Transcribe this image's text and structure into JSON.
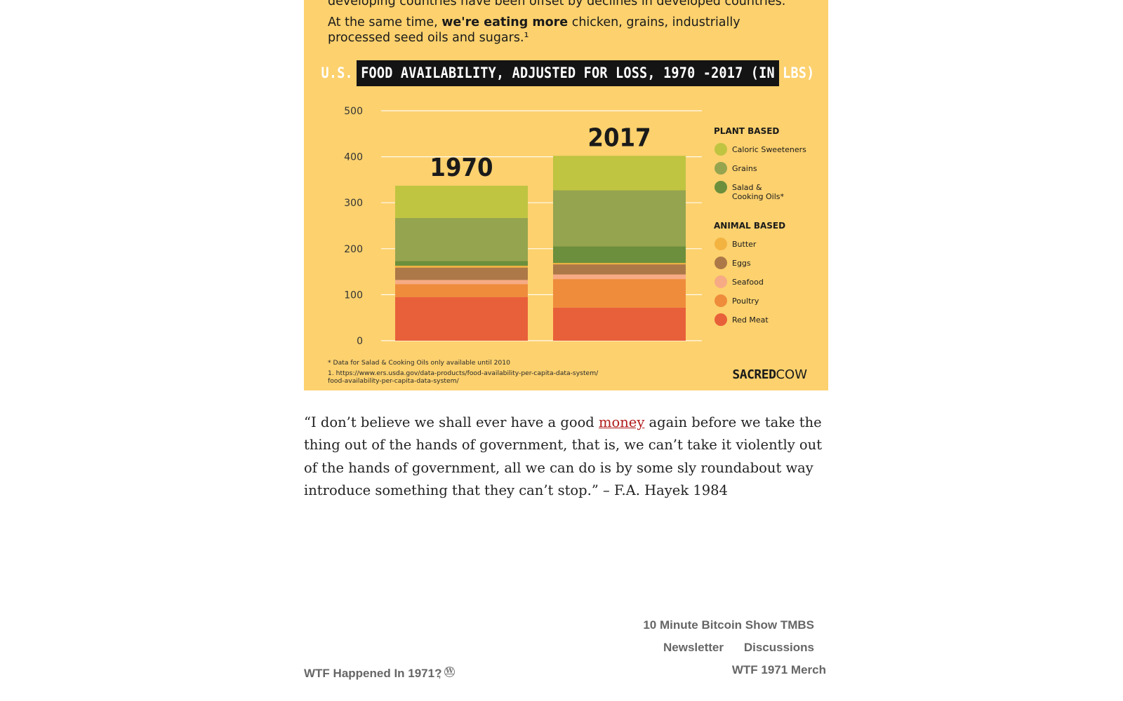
{
  "infographic": {
    "intro_line_0": "developing countries have been offset by declines in developed countries.",
    "intro_line_1_pre": "At the same time, ",
    "intro_line_1_bold": "we're eating more",
    "intro_line_1_post": " chicken, grains, industrially",
    "intro_line_2": "processed seed oils and sugars.¹",
    "chart_title": "U.S. FOOD AVAILABILITY, ADJUSTED FOR LOSS, 1970 -2017 (IN LBS)",
    "footnote_1": "* Data for Salad & Cooking Oils only available until 2010",
    "footnote_2": "1. https://www.ers.usda.gov/data-products/food-availability-per-capita-data-system/",
    "footnote_2b": "food-availability-per-capita-data-system/",
    "brand_bold": "SACRED",
    "brand_light": "COW",
    "background_color": "#fcd16e"
  },
  "chart_data": {
    "type": "bar",
    "stacked": true,
    "title": "U.S. FOOD AVAILABILITY, ADJUSTED FOR LOSS, 1970 -2017 (IN LBS)",
    "categories": [
      "1970",
      "2017"
    ],
    "ylim": [
      0,
      500
    ],
    "yticks": [
      0,
      100,
      200,
      300,
      400,
      500
    ],
    "grid": true,
    "legend_position": "right",
    "legend_groups": [
      {
        "heading": "PLANT BASED",
        "items": [
          "Caloric Sweeteners",
          "Grains",
          "Salad & Cooking Oils*"
        ]
      },
      {
        "heading": "ANIMAL BASED",
        "items": [
          "Butter",
          "Eggs",
          "Seafood",
          "Poultry",
          "Red Meat"
        ]
      }
    ],
    "series": [
      {
        "name": "Red Meat",
        "color": "#e8603a",
        "values": [
          95,
          72
        ]
      },
      {
        "name": "Poultry",
        "color": "#ee8c3c",
        "values": [
          28,
          62
        ]
      },
      {
        "name": "Seafood",
        "color": "#f7ab84",
        "values": [
          9,
          10
        ]
      },
      {
        "name": "Eggs",
        "color": "#ad7848",
        "values": [
          27,
          22
        ]
      },
      {
        "name": "Butter",
        "color": "#f3b341",
        "values": [
          4,
          3
        ]
      },
      {
        "name": "Salad & Cooking Oils*",
        "color": "#6b8f3c",
        "values": [
          10,
          36
        ]
      },
      {
        "name": "Grains",
        "color": "#95a44f",
        "values": [
          94,
          122
        ]
      },
      {
        "name": "Caloric Sweeteners",
        "color": "#bfc441",
        "values": [
          70,
          75
        ]
      }
    ]
  },
  "quote": {
    "text_before": "“I don’t believe we shall ever have a good ",
    "link_text": "money",
    "text_after": " again before we take the thing out of the hands of government, that is, we can’t take it violently out of the hands of government, all we can do is by some sly roundabout way introduce something that they can’t stop.” – F.A. Hayek 1984"
  },
  "footer": {
    "site_title": "WTF Happened In 1971?",
    "comma": ",",
    "wp_icon": "wordpress-icon",
    "nav": {
      "show": "10 Minute Bitcoin Show TMBS",
      "newsletter": "Newsletter",
      "discussions": "Discussions",
      "merch": "WTF 1971 Merch"
    }
  }
}
